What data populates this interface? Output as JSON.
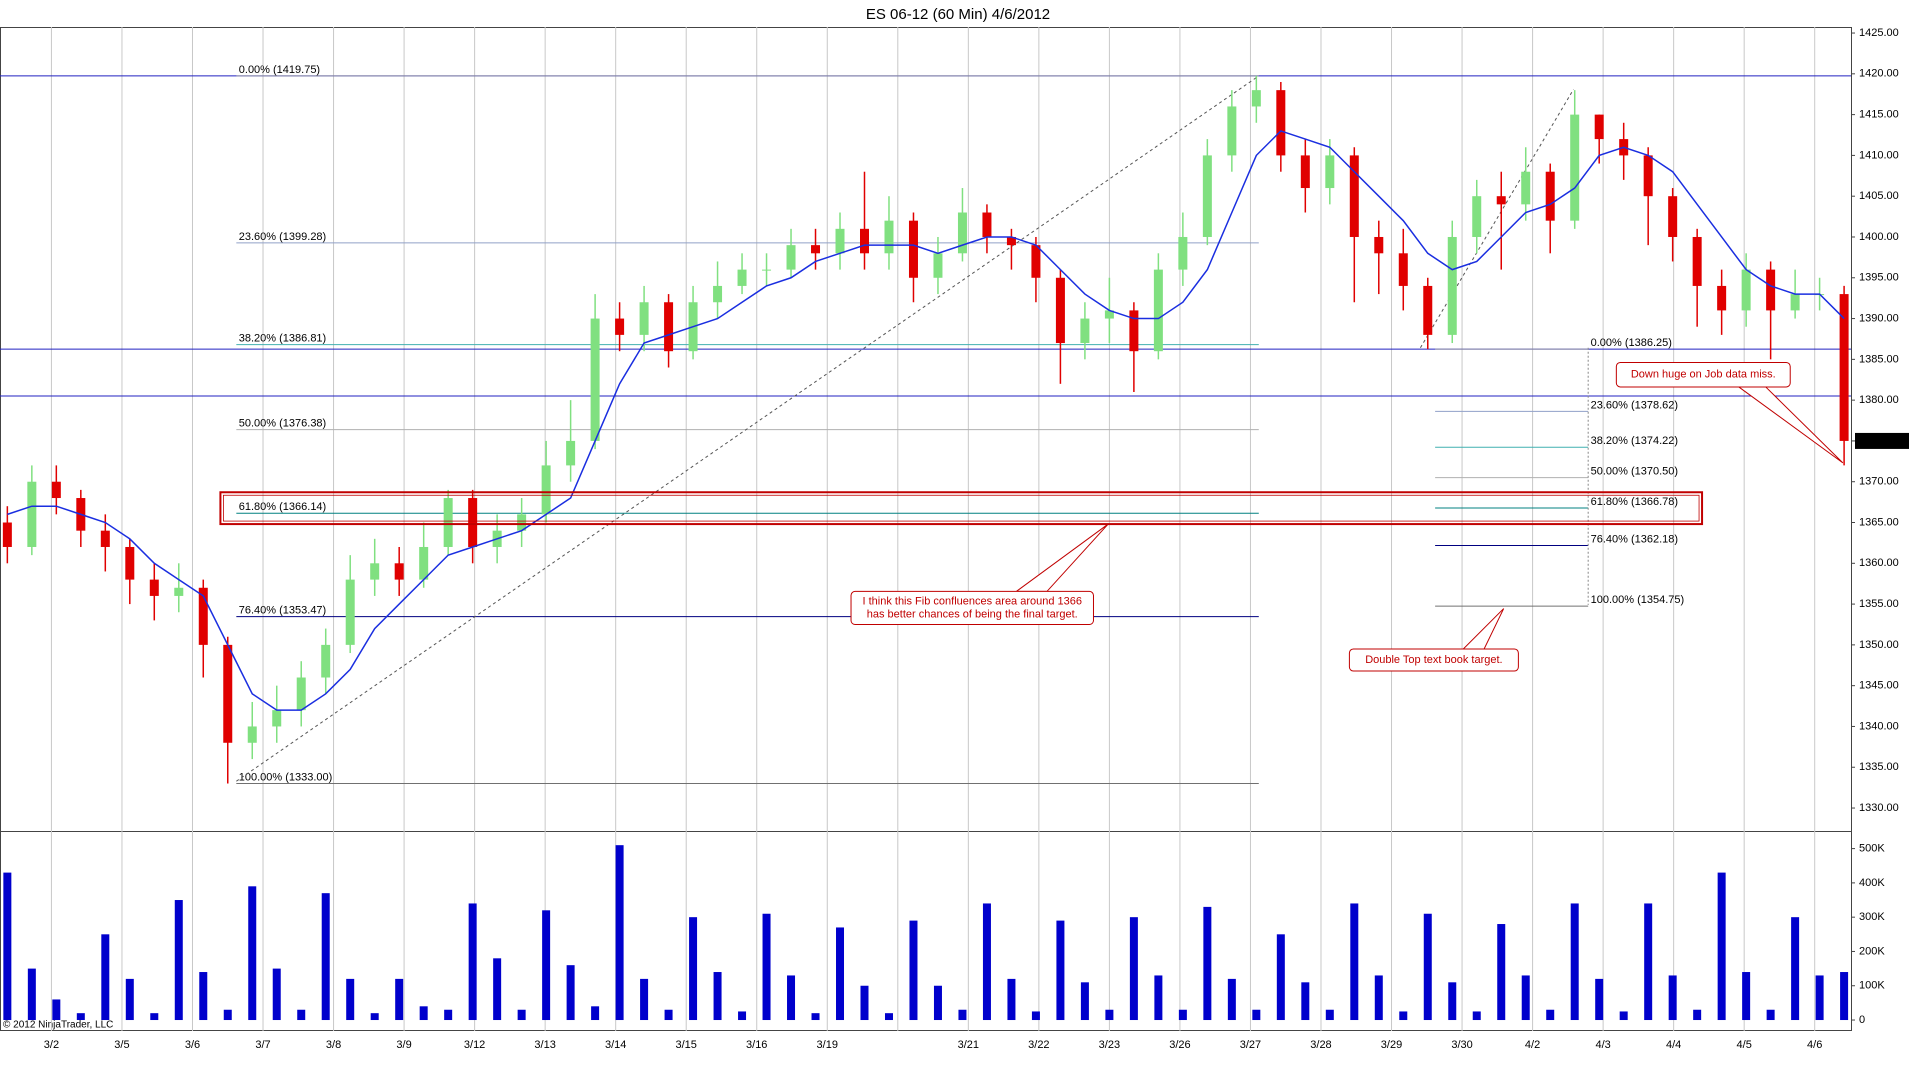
{
  "chart_data": {
    "type": "candlestick",
    "title": "ES 06-12 (60 Min)  4/6/2012",
    "copyright": "© 2012 NinjaTrader, LLC",
    "categories": [
      "3/2",
      "3/5",
      "3/6",
      "3/7",
      "3/8",
      "3/9",
      "3/12",
      "3/13",
      "3/14",
      "3/15",
      "3/16",
      "3/19",
      null,
      "3/21",
      "3/22",
      "3/23",
      "3/26",
      "3/27",
      "3/28",
      "3/29",
      "3/30",
      "4/2",
      "4/3",
      "4/4",
      "4/5",
      "4/6"
    ],
    "up_color": "#80e080",
    "down_color": "#e00000",
    "open": [
      1365,
      1362,
      1370,
      1368,
      1364,
      1362,
      1358,
      1356,
      1357,
      1350,
      1338,
      1340,
      1342,
      1346,
      1350,
      1358,
      1360,
      1358,
      1362,
      1368,
      1362,
      1364,
      1366,
      1372,
      1375,
      1390,
      1388,
      1392,
      1386,
      1392,
      1394,
      1396,
      1396,
      1399,
      1398,
      1401,
      1398,
      1402,
      1395,
      1398,
      1403,
      1400,
      1399,
      1395,
      1387,
      1390,
      1391,
      1386,
      1396,
      1400,
      1410,
      1416,
      1418,
      1410,
      1406,
      1410,
      1400,
      1398,
      1394,
      1388,
      1400,
      1405,
      1404,
      1408,
      1402,
      1415,
      1412,
      1410,
      1405,
      1400,
      1394,
      1391,
      1396,
      1391,
      1393,
      1393
    ],
    "high": [
      1367,
      1372,
      1372,
      1369,
      1366,
      1363,
      1360,
      1360,
      1358,
      1351,
      1343,
      1345,
      1348,
      1352,
      1361,
      1363,
      1362,
      1365,
      1369,
      1369,
      1366,
      1368,
      1375,
      1380,
      1393,
      1392,
      1394,
      1393,
      1394,
      1397,
      1398,
      1398,
      1401,
      1401,
      1403,
      1408,
      1405,
      1403,
      1400,
      1406,
      1404,
      1401,
      1400,
      1396,
      1392,
      1395,
      1392,
      1398,
      1403,
      1412,
      1418,
      1419.75,
      1419,
      1412,
      1412,
      1411,
      1402,
      1401,
      1395,
      1402,
      1407,
      1408,
      1411,
      1409,
      1418,
      1415,
      1414,
      1411,
      1406,
      1401,
      1396,
      1398,
      1397,
      1396,
      1395,
      1394
    ],
    "low": [
      1360,
      1361,
      1366,
      1362,
      1359,
      1355,
      1353,
      1354,
      1346,
      1333,
      1336,
      1338,
      1340,
      1344,
      1349,
      1356,
      1356,
      1357,
      1361,
      1360,
      1360,
      1362,
      1365,
      1370,
      1374,
      1386,
      1386,
      1384,
      1385,
      1390,
      1393,
      1394,
      1395,
      1396,
      1396,
      1396,
      1396,
      1392,
      1393,
      1397,
      1398,
      1396,
      1392,
      1382,
      1385,
      1387,
      1381,
      1385,
      1394,
      1399,
      1408,
      1414,
      1408,
      1403,
      1404,
      1392,
      1393,
      1391,
      1386.25,
      1387,
      1398,
      1396,
      1402,
      1398,
      1401,
      1409,
      1407,
      1399,
      1397,
      1389,
      1388,
      1389,
      1385,
      1390,
      1391,
      1372
    ],
    "close": [
      1362,
      1370,
      1368,
      1364,
      1362,
      1358,
      1356,
      1357,
      1350,
      1338,
      1340,
      1342,
      1346,
      1350,
      1358,
      1360,
      1358,
      1362,
      1368,
      1362,
      1364,
      1366,
      1372,
      1375,
      1390,
      1388,
      1392,
      1386,
      1392,
      1394,
      1396,
      1396,
      1399,
      1398,
      1401,
      1398,
      1402,
      1395,
      1398,
      1403,
      1400,
      1399,
      1395,
      1387,
      1390,
      1391,
      1386,
      1396,
      1400,
      1410,
      1416,
      1418,
      1410,
      1406,
      1410,
      1400,
      1398,
      1394,
      1388,
      1400,
      1405,
      1404,
      1408,
      1402,
      1415,
      1412,
      1410,
      1405,
      1400,
      1394,
      1391,
      1396,
      1391,
      1393,
      1393,
      1375
    ],
    "ma": {
      "color": "#1a2ee0",
      "values": [
        1366,
        1367,
        1367,
        1366,
        1365,
        1363,
        1360,
        1358,
        1356,
        1350,
        1344,
        1342,
        1342,
        1344,
        1347,
        1352,
        1355,
        1358,
        1361,
        1362,
        1363,
        1364,
        1366,
        1368,
        1375,
        1382,
        1387,
        1388,
        1389,
        1390,
        1392,
        1394,
        1395,
        1397,
        1398,
        1399,
        1399,
        1399,
        1398,
        1399,
        1400,
        1400,
        1399,
        1396,
        1393,
        1391,
        1390,
        1390,
        1392,
        1396,
        1403,
        1410,
        1413,
        1412,
        1411,
        1408,
        1405,
        1402,
        1398,
        1396,
        1397,
        1400,
        1403,
        1404,
        1406,
        1410,
        1411,
        1410,
        1408,
        1404,
        1400,
        1396,
        1394,
        1393,
        1393,
        1390
      ]
    },
    "ylim": [
      1327.43,
      1425.74
    ],
    "yticks": [
      {
        "value": 1330,
        "label": "1330.00"
      },
      {
        "value": 1335,
        "label": "1335.00"
      },
      {
        "value": 1340,
        "label": "1340.00"
      },
      {
        "value": 1345,
        "label": "1345.00"
      },
      {
        "value": 1350,
        "label": "1350.00"
      },
      {
        "value": 1355,
        "label": "1355.00"
      },
      {
        "value": 1360,
        "label": "1360.00"
      },
      {
        "value": 1365,
        "label": "1365.00"
      },
      {
        "value": 1370,
        "label": "1370.00"
      },
      {
        "value": 1375,
        "label": "1375.00"
      },
      {
        "value": 1380,
        "label": "1380.00"
      },
      {
        "value": 1385,
        "label": "1385.00"
      },
      {
        "value": 1390,
        "label": "1390.00"
      },
      {
        "value": 1395,
        "label": "1395.00"
      },
      {
        "value": 1400,
        "label": "1400.00"
      },
      {
        "value": 1405,
        "label": "1405.00"
      },
      {
        "value": 1410,
        "label": "1410.00"
      },
      {
        "value": 1415,
        "label": "1415.00"
      },
      {
        "value": 1420,
        "label": "1420.00"
      },
      {
        "value": 1425,
        "label": "1425.00"
      }
    ],
    "last_price": {
      "value": 1375,
      "label": "1375.00"
    },
    "levels": {
      "color": "#2020c0",
      "values": [
        1419.75,
        1386.25,
        1380.5
      ]
    },
    "fib_left": [
      {
        "value": 1419.75,
        "label": "0.00% (1419.75)",
        "color": "#9090a8"
      },
      {
        "value": 1399.28,
        "label": "23.60% (1399.28)",
        "color": "#90a0c8"
      },
      {
        "value": 1386.81,
        "label": "38.20% (1386.81)",
        "color": "#40b0b0"
      },
      {
        "value": 1376.38,
        "label": "50.00% (1376.38)",
        "color": "#b0b0b0"
      },
      {
        "value": 1366.14,
        "label": "61.80% (1366.14)",
        "color": "#008080"
      },
      {
        "value": 1353.47,
        "label": "76.40% (1353.47)",
        "color": "#000080"
      },
      {
        "value": 1333,
        "label": "100.00% (1333.00)",
        "color": "#707070"
      }
    ],
    "fib_right": [
      {
        "value": 1386.25,
        "label": "0.00% (1386.25)",
        "color": "#9090a8"
      },
      {
        "value": 1378.62,
        "label": "23.60% (1378.62)",
        "color": "#90a0c8"
      },
      {
        "value": 1374.22,
        "label": "38.20% (1374.22)",
        "color": "#40b0b0"
      },
      {
        "value": 1370.5,
        "label": "50.00% (1370.50)",
        "color": "#b0b0b0"
      },
      {
        "value": 1366.78,
        "label": "61.80% (1366.78)",
        "color": "#008080"
      },
      {
        "value": 1362.18,
        "label": "76.40% (1362.18)",
        "color": "#000080"
      },
      {
        "value": 1354.75,
        "label": "100.00% (1354.75)",
        "color": "#707070"
      }
    ],
    "annotations": [
      {
        "lines": [
          "I think this Fib confluences area around 1366",
          "has better chances of being the final target."
        ]
      },
      {
        "lines": [
          "Down huge on Job data miss."
        ]
      },
      {
        "lines": [
          "Double Top text book target."
        ]
      }
    ],
    "volume": {
      "color": "#0000cc",
      "values": [
        430000,
        150000,
        60000,
        20000,
        250000,
        120000,
        20000,
        350000,
        140000,
        30000,
        390000,
        150000,
        30000,
        370000,
        120000,
        20000,
        120000,
        40000,
        30000,
        340000,
        180000,
        30000,
        320000,
        160000,
        40000,
        510000,
        120000,
        30000,
        300000,
        140000,
        25000,
        310000,
        130000,
        20000,
        270000,
        100000,
        20000,
        290000,
        100000,
        30000,
        340000,
        120000,
        25000,
        290000,
        110000,
        30000,
        300000,
        130000,
        30000,
        330000,
        120000,
        30000,
        250000,
        110000,
        30000,
        340000,
        130000,
        25000,
        310000,
        110000,
        25000,
        280000,
        130000,
        30000,
        340000,
        120000,
        25000,
        340000,
        130000,
        30000,
        430000,
        140000,
        30000,
        300000,
        130000,
        140000
      ],
      "ylim": [
        -32000,
        545500
      ],
      "yticks": [
        0,
        {
          "value": 100000,
          "label": "100K"
        },
        {
          "value": 200000,
          "label": "200K"
        },
        {
          "value": 300000,
          "label": "300K"
        },
        {
          "value": 400000,
          "label": "400K"
        },
        {
          "value": 500000,
          "label": "500K"
        }
      ]
    }
  }
}
